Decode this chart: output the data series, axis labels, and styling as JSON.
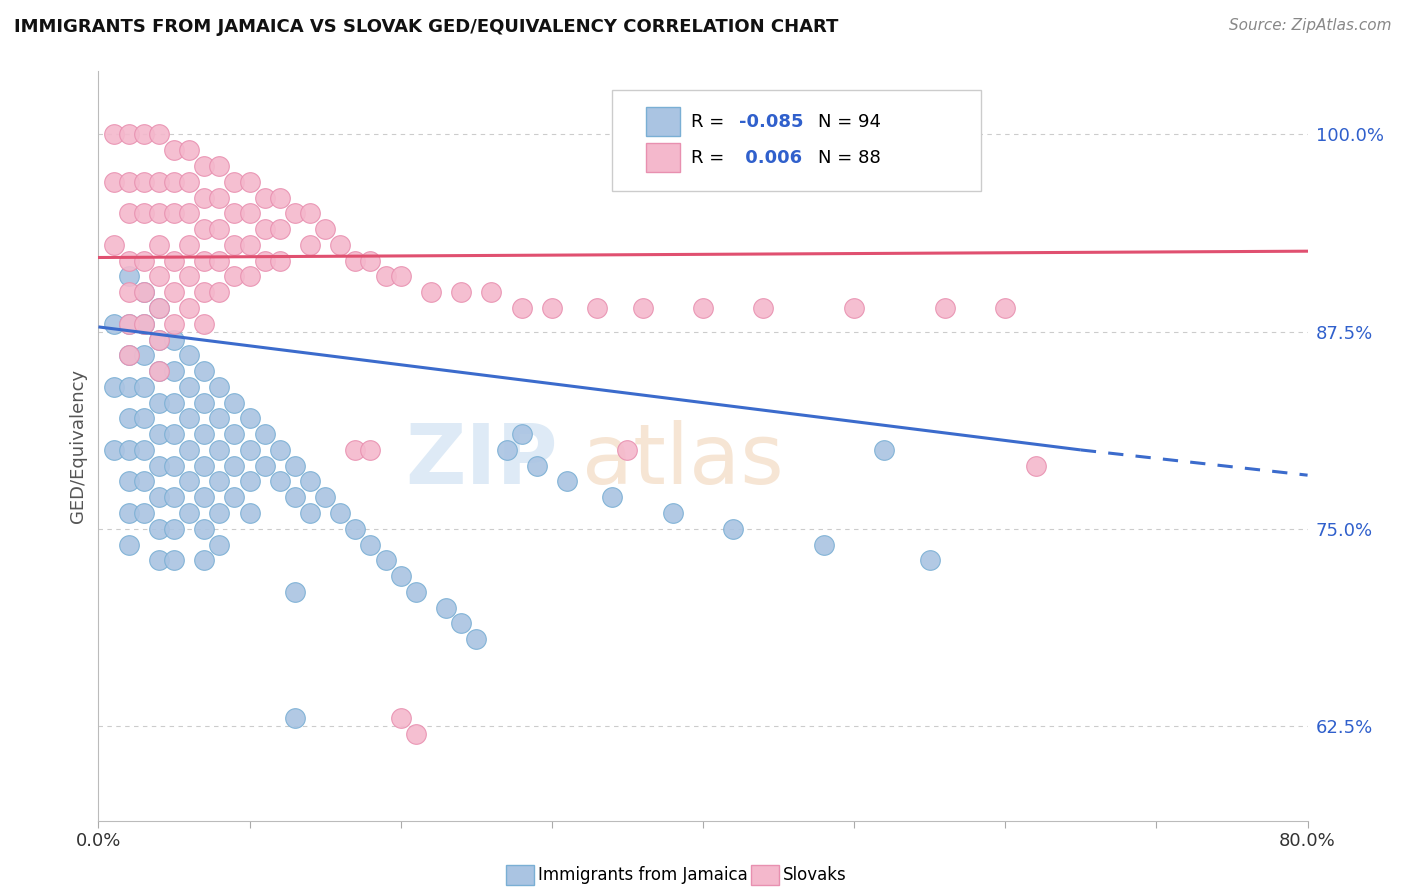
{
  "title": "IMMIGRANTS FROM JAMAICA VS SLOVAK GED/EQUIVALENCY CORRELATION CHART",
  "source": "Source: ZipAtlas.com",
  "ylabel": "GED/Equivalency",
  "yticks": [
    "62.5%",
    "75.0%",
    "87.5%",
    "100.0%"
  ],
  "ytick_vals": [
    0.625,
    0.75,
    0.875,
    1.0
  ],
  "xmin": 0.0,
  "xmax": 0.8,
  "ymin": 0.565,
  "ymax": 1.04,
  "blue_R": "-0.085",
  "blue_N": "94",
  "pink_R": "0.006",
  "pink_N": "88",
  "blue_color": "#aac4e2",
  "pink_color": "#f4b8cc",
  "blue_edge": "#7aafd4",
  "pink_edge": "#e890b0",
  "blue_line_color": "#3b6bcc",
  "pink_line_color": "#e05070",
  "blue_text_color": "#3060cc",
  "jamaica_x": [
    0.01,
    0.01,
    0.01,
    0.02,
    0.02,
    0.02,
    0.02,
    0.02,
    0.02,
    0.02,
    0.02,
    0.02,
    0.03,
    0.03,
    0.03,
    0.03,
    0.03,
    0.03,
    0.03,
    0.03,
    0.04,
    0.04,
    0.04,
    0.04,
    0.04,
    0.04,
    0.04,
    0.04,
    0.04,
    0.05,
    0.05,
    0.05,
    0.05,
    0.05,
    0.05,
    0.05,
    0.05,
    0.06,
    0.06,
    0.06,
    0.06,
    0.06,
    0.06,
    0.07,
    0.07,
    0.07,
    0.07,
    0.07,
    0.07,
    0.07,
    0.08,
    0.08,
    0.08,
    0.08,
    0.08,
    0.08,
    0.09,
    0.09,
    0.09,
    0.09,
    0.1,
    0.1,
    0.1,
    0.1,
    0.11,
    0.11,
    0.12,
    0.12,
    0.13,
    0.13,
    0.14,
    0.14,
    0.15,
    0.16,
    0.17,
    0.18,
    0.19,
    0.2,
    0.21,
    0.23,
    0.24,
    0.25,
    0.27,
    0.29,
    0.31,
    0.34,
    0.38,
    0.42,
    0.48,
    0.55,
    0.13,
    0.13,
    0.28,
    0.52
  ],
  "jamaica_y": [
    0.88,
    0.84,
    0.8,
    0.91,
    0.88,
    0.86,
    0.84,
    0.82,
    0.8,
    0.78,
    0.76,
    0.74,
    0.9,
    0.88,
    0.86,
    0.84,
    0.82,
    0.8,
    0.78,
    0.76,
    0.89,
    0.87,
    0.85,
    0.83,
    0.81,
    0.79,
    0.77,
    0.75,
    0.73,
    0.87,
    0.85,
    0.83,
    0.81,
    0.79,
    0.77,
    0.75,
    0.73,
    0.86,
    0.84,
    0.82,
    0.8,
    0.78,
    0.76,
    0.85,
    0.83,
    0.81,
    0.79,
    0.77,
    0.75,
    0.73,
    0.84,
    0.82,
    0.8,
    0.78,
    0.76,
    0.74,
    0.83,
    0.81,
    0.79,
    0.77,
    0.82,
    0.8,
    0.78,
    0.76,
    0.81,
    0.79,
    0.8,
    0.78,
    0.79,
    0.77,
    0.78,
    0.76,
    0.77,
    0.76,
    0.75,
    0.74,
    0.73,
    0.72,
    0.71,
    0.7,
    0.69,
    0.68,
    0.8,
    0.79,
    0.78,
    0.77,
    0.76,
    0.75,
    0.74,
    0.73,
    0.63,
    0.71,
    0.81,
    0.8
  ],
  "slovak_x": [
    0.01,
    0.01,
    0.01,
    0.02,
    0.02,
    0.02,
    0.02,
    0.02,
    0.02,
    0.02,
    0.03,
    0.03,
    0.03,
    0.03,
    0.03,
    0.03,
    0.04,
    0.04,
    0.04,
    0.04,
    0.04,
    0.04,
    0.04,
    0.04,
    0.05,
    0.05,
    0.05,
    0.05,
    0.05,
    0.05,
    0.06,
    0.06,
    0.06,
    0.06,
    0.06,
    0.06,
    0.07,
    0.07,
    0.07,
    0.07,
    0.07,
    0.07,
    0.08,
    0.08,
    0.08,
    0.08,
    0.08,
    0.09,
    0.09,
    0.09,
    0.09,
    0.1,
    0.1,
    0.1,
    0.1,
    0.11,
    0.11,
    0.11,
    0.12,
    0.12,
    0.12,
    0.13,
    0.14,
    0.14,
    0.15,
    0.16,
    0.17,
    0.18,
    0.19,
    0.2,
    0.22,
    0.24,
    0.26,
    0.28,
    0.3,
    0.33,
    0.36,
    0.4,
    0.44,
    0.5,
    0.56,
    0.6,
    0.17,
    0.18,
    0.35,
    0.62,
    0.2,
    0.21
  ],
  "slovak_y": [
    1.0,
    0.97,
    0.93,
    1.0,
    0.97,
    0.95,
    0.92,
    0.9,
    0.88,
    0.86,
    1.0,
    0.97,
    0.95,
    0.92,
    0.9,
    0.88,
    1.0,
    0.97,
    0.95,
    0.93,
    0.91,
    0.89,
    0.87,
    0.85,
    0.99,
    0.97,
    0.95,
    0.92,
    0.9,
    0.88,
    0.99,
    0.97,
    0.95,
    0.93,
    0.91,
    0.89,
    0.98,
    0.96,
    0.94,
    0.92,
    0.9,
    0.88,
    0.98,
    0.96,
    0.94,
    0.92,
    0.9,
    0.97,
    0.95,
    0.93,
    0.91,
    0.97,
    0.95,
    0.93,
    0.91,
    0.96,
    0.94,
    0.92,
    0.96,
    0.94,
    0.92,
    0.95,
    0.95,
    0.93,
    0.94,
    0.93,
    0.92,
    0.92,
    0.91,
    0.91,
    0.9,
    0.9,
    0.9,
    0.89,
    0.89,
    0.89,
    0.89,
    0.89,
    0.89,
    0.89,
    0.89,
    0.89,
    0.8,
    0.8,
    0.8,
    0.79,
    0.63,
    0.62
  ]
}
